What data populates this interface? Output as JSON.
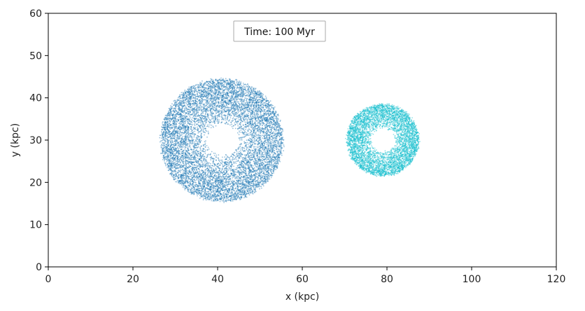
{
  "chart_data": {
    "type": "scatter",
    "xlabel": "x (kpc)",
    "ylabel": "y (kpc)",
    "xlim": [
      0,
      120
    ],
    "ylim": [
      0,
      60
    ],
    "xticks": [
      "0",
      "20",
      "40",
      "60",
      "80",
      "100",
      "120"
    ],
    "yticks": [
      "0",
      "10",
      "20",
      "30",
      "40",
      "50",
      "60"
    ],
    "grid": false,
    "annotation": "Time: 100 Myr",
    "series": [
      {
        "center": [
          41,
          30
        ],
        "inner_radius": 3.5,
        "outer_radius": 14.5,
        "color": "#1f77b4"
      },
      {
        "center": [
          79,
          30
        ],
        "inner_radius": 2.5,
        "outer_radius": 8.5,
        "color": "#17becf"
      }
    ]
  }
}
